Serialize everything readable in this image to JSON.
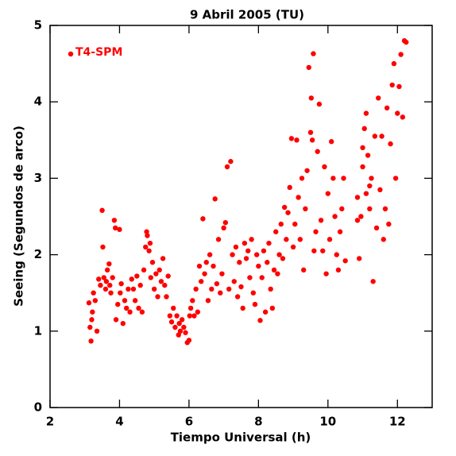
{
  "chart_data": {
    "type": "scatter",
    "title": "9 Abril 2005 (TU)",
    "x_label": "Tiempo Universal (h)",
    "y_label": "Seeing (Segundos de arco)",
    "xlim": [
      2,
      13
    ],
    "ylim": [
      0,
      5
    ],
    "xticks": [
      2,
      4,
      6,
      8,
      10,
      12
    ],
    "yticks": [
      0,
      1,
      2,
      3,
      4,
      5
    ],
    "legend": "upper left",
    "x": [
      3.12,
      3.15,
      3.18,
      3.2,
      3.22,
      3.25,
      3.3,
      3.35,
      3.4,
      3.45,
      3.5,
      3.52,
      3.55,
      3.6,
      3.62,
      3.65,
      3.7,
      3.72,
      3.75,
      3.8,
      3.85,
      3.88,
      3.9,
      3.95,
      4.0,
      4.02,
      4.05,
      4.1,
      4.15,
      4.2,
      4.25,
      4.3,
      4.35,
      4.4,
      4.45,
      4.5,
      4.55,
      4.6,
      4.65,
      4.7,
      4.75,
      4.78,
      4.8,
      4.85,
      4.88,
      4.9,
      4.95,
      5.0,
      5.05,
      5.1,
      5.15,
      5.2,
      5.25,
      5.3,
      5.35,
      5.4,
      5.45,
      5.5,
      5.55,
      5.6,
      5.65,
      5.7,
      5.72,
      5.75,
      5.8,
      5.85,
      5.9,
      5.95,
      6.0,
      6.02,
      6.05,
      6.1,
      6.15,
      6.2,
      6.25,
      6.3,
      6.35,
      6.4,
      6.45,
      6.5,
      6.55,
      6.6,
      6.65,
      6.7,
      6.75,
      6.8,
      6.85,
      6.9,
      6.95,
      7.0,
      7.05,
      7.1,
      7.15,
      7.2,
      7.25,
      7.3,
      7.35,
      7.4,
      7.45,
      7.5,
      7.55,
      7.6,
      7.65,
      7.7,
      7.75,
      7.8,
      7.85,
      7.9,
      7.95,
      8.0,
      8.05,
      8.1,
      8.15,
      8.2,
      8.25,
      8.3,
      8.35,
      8.4,
      8.45,
      8.5,
      8.55,
      8.6,
      8.65,
      8.7,
      8.75,
      8.8,
      8.85,
      8.9,
      8.95,
      9.0,
      9.05,
      9.1,
      9.15,
      9.2,
      9.25,
      9.3,
      9.35,
      9.4,
      9.45,
      9.5,
      9.52,
      9.55,
      9.58,
      9.6,
      9.65,
      9.7,
      9.75,
      9.8,
      9.85,
      9.9,
      9.95,
      10.0,
      10.05,
      10.1,
      10.15,
      10.2,
      10.25,
      10.3,
      10.35,
      10.4,
      10.45,
      10.5,
      10.85,
      10.9,
      10.95,
      11.0,
      11.05,
      11.1,
      11.15,
      11.2,
      11.25,
      11.3,
      11.35,
      11.4,
      11.45,
      11.5,
      11.55,
      11.6,
      11.65,
      11.7,
      11.75,
      11.8,
      11.85,
      11.9,
      11.95,
      12.0,
      12.05,
      12.1,
      12.15,
      12.2,
      12.25,
      10.85,
      11.0,
      11.1,
      11.2
    ],
    "series": [
      {
        "name": "T4-SPM",
        "color": "#ff0000",
        "values": [
          1.37,
          1.05,
          0.87,
          1.15,
          1.25,
          1.5,
          1.4,
          1.0,
          1.68,
          1.6,
          2.58,
          2.1,
          1.7,
          1.55,
          1.65,
          1.8,
          1.88,
          1.6,
          1.5,
          1.7,
          2.45,
          2.35,
          1.15,
          1.35,
          2.33,
          1.5,
          1.62,
          1.1,
          1.4,
          1.3,
          1.55,
          1.25,
          1.68,
          1.55,
          1.4,
          1.72,
          1.3,
          1.6,
          1.25,
          1.8,
          2.1,
          2.3,
          2.25,
          2.05,
          2.15,
          1.7,
          1.9,
          1.55,
          1.75,
          1.45,
          1.8,
          1.65,
          1.95,
          1.6,
          1.45,
          1.72,
          1.2,
          1.12,
          1.3,
          1.05,
          1.2,
          0.95,
          1.1,
          1.0,
          1.15,
          1.05,
          0.98,
          0.85,
          0.88,
          1.2,
          1.3,
          1.4,
          1.2,
          1.55,
          1.25,
          1.85,
          1.65,
          2.47,
          1.75,
          1.9,
          1.4,
          2.0,
          1.55,
          1.85,
          2.73,
          1.62,
          2.2,
          1.5,
          1.75,
          2.35,
          2.42,
          3.15,
          1.55,
          3.22,
          2.0,
          1.65,
          2.1,
          1.45,
          1.9,
          1.58,
          1.3,
          2.15,
          1.95,
          2.05,
          1.7,
          2.2,
          1.5,
          1.35,
          2.0,
          1.85,
          1.14,
          1.7,
          2.05,
          1.25,
          1.9,
          2.15,
          1.55,
          1.3,
          1.8,
          2.3,
          1.75,
          2.0,
          2.4,
          1.95,
          2.62,
          2.2,
          2.55,
          2.88,
          3.52,
          2.1,
          2.4,
          3.5,
          2.75,
          2.2,
          3.0,
          1.8,
          2.6,
          3.1,
          4.45,
          3.6,
          4.05,
          3.5,
          4.63,
          2.05,
          2.3,
          3.35,
          3.97,
          2.45,
          2.05,
          3.15,
          1.75,
          2.8,
          2.2,
          3.48,
          3.0,
          2.5,
          2.0,
          1.8,
          2.3,
          2.6,
          3.0,
          1.92,
          2.45,
          1.95,
          2.5,
          3.15,
          3.65,
          2.8,
          3.3,
          2.6,
          3.0,
          1.65,
          3.55,
          2.35,
          4.05,
          2.85,
          3.55,
          2.2,
          2.6,
          3.92,
          2.4,
          3.45,
          4.22,
          4.5,
          3.0,
          3.85,
          4.2,
          4.62,
          3.8,
          4.8,
          4.78,
          2.75,
          3.4,
          3.85,
          2.9
        ]
      }
    ]
  }
}
